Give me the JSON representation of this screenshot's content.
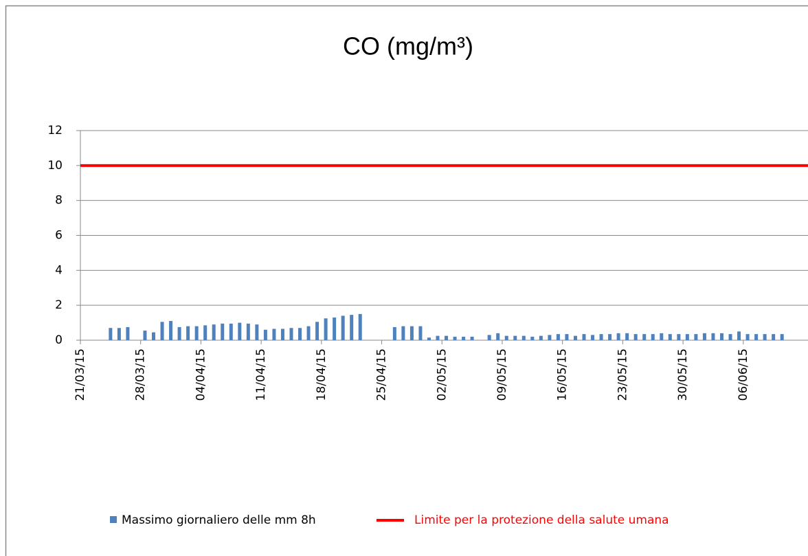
{
  "chart_data": {
    "type": "bar",
    "title": "CO (mg/m³)",
    "categories": [
      "21/03/15",
      null,
      null,
      null,
      null,
      null,
      null,
      "28/03/15",
      null,
      null,
      null,
      null,
      null,
      null,
      "04/04/15",
      null,
      null,
      null,
      null,
      null,
      null,
      "11/04/15",
      null,
      null,
      null,
      null,
      null,
      null,
      "18/04/15",
      null,
      null,
      null,
      null,
      null,
      null,
      "25/04/15",
      null,
      null,
      null,
      null,
      null,
      null,
      "02/05/15",
      null,
      null,
      null,
      null,
      null,
      null,
      "09/05/15",
      null,
      null,
      null,
      null,
      null,
      null,
      "16/05/15",
      null,
      null,
      null,
      null,
      null,
      null,
      "23/05/15",
      null,
      null,
      null,
      null,
      null,
      null,
      "30/05/15",
      null,
      null,
      null,
      null,
      null,
      null,
      "06/06/15",
      null,
      null,
      null,
      null
    ],
    "series": [
      {
        "name": "Massimo giornaliero delle mm 8h",
        "color": "#4f81bd",
        "values": [
          null,
          null,
          null,
          0.7,
          0.7,
          0.75,
          null,
          0.55,
          0.45,
          1.05,
          1.1,
          0.75,
          0.8,
          0.8,
          0.85,
          0.9,
          0.95,
          0.95,
          1.0,
          0.95,
          0.9,
          0.6,
          0.65,
          0.65,
          0.7,
          0.7,
          0.8,
          1.05,
          1.25,
          1.3,
          1.4,
          1.45,
          1.5,
          null,
          null,
          null,
          0.75,
          0.8,
          0.8,
          0.8,
          0.15,
          0.25,
          0.25,
          0.2,
          0.2,
          0.2,
          null,
          0.3,
          0.4,
          0.25,
          0.25,
          0.25,
          0.2,
          0.25,
          0.3,
          0.35,
          0.35,
          0.25,
          0.35,
          0.3,
          0.35,
          0.35,
          0.4,
          0.4,
          0.35,
          0.35,
          0.35,
          0.4,
          0.35,
          0.35,
          0.35,
          0.35,
          0.4,
          0.4,
          0.4,
          0.35,
          0.5,
          0.35,
          0.35,
          0.35,
          0.35,
          0.35
        ]
      }
    ],
    "reference_lines": [
      {
        "name": "Limite per la protezione della salute umana",
        "color": "#ff0000",
        "value": 10
      }
    ],
    "ylim": [
      0,
      12
    ],
    "yticks": [
      0,
      2,
      4,
      6,
      8,
      10,
      12
    ],
    "grid": true
  }
}
